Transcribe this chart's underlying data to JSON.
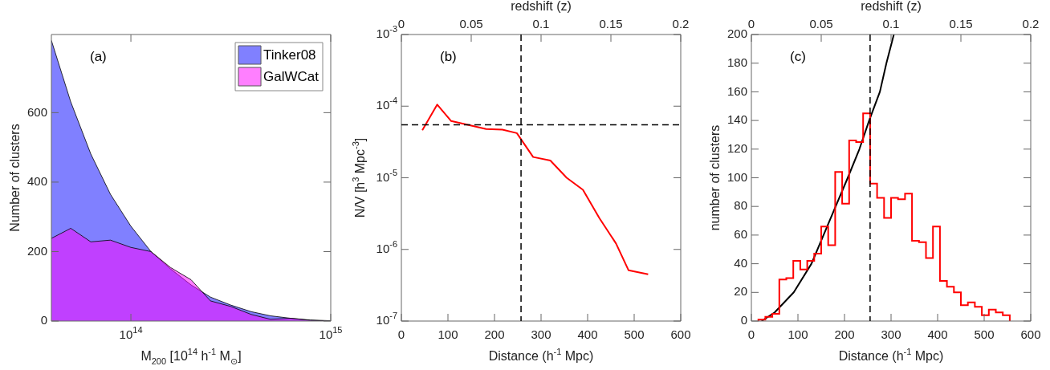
{
  "chart_data": [
    {
      "type": "area",
      "xlabel": "M$_{200}$ [10$^{14}$ h$^{-1}$ M$_{⊙}$]",
      "ylabel": "Number of clusters",
      "log": "x",
      "legend": "top right",
      "annotations": [
        "(a)"
      ],
      "x": [
        40000000000000.0,
        50000000000000.0,
        63000000000000.0,
        79000000000000.0,
        100000000000000.0,
        126000000000000.0,
        158000000000000.0,
        200000000000000.0,
        250000000000000.0,
        316000000000000.0,
        400000000000000.0,
        500000000000000.0,
        630000000000000.0,
        790000000000000.0,
        1000000000000000.0
      ],
      "series": [
        {
          "name": "Tinker08",
          "color": "#8080ff",
          "values": [
            808,
            631,
            481,
            365,
            273,
            200,
            150,
            104,
            69,
            46,
            27,
            15,
            8,
            3,
            1
          ]
        },
        {
          "name": "GalWCat",
          "color": "#ff00ff",
          "values": [
            238,
            267,
            228,
            233,
            212,
            200,
            154,
            119,
            58,
            42,
            19,
            5,
            8,
            2,
            0
          ]
        }
      ],
      "xlim": [
        40000000000000.0,
        1000000000000000.0
      ],
      "xticks": [
        {
          "value": 100000000000000.0,
          "label": "10$^{14}$"
        },
        {
          "value": 1000000000000000.0,
          "label": "10$^{15}$"
        }
      ],
      "ylim": [
        0,
        825
      ],
      "yticks": [
        0,
        200,
        400,
        600
      ]
    },
    {
      "type": "line",
      "xlabel": "Distance (h$^{-1}$ Mpc)",
      "ylabel": "N/V [h$^{3}$ Mpc$^{-3}$]",
      "x2label": "redshift (z)",
      "log": "y",
      "annotations": [
        "(b)"
      ],
      "x": [
        45,
        77,
        107,
        182,
        217,
        248,
        283,
        320,
        355,
        390,
        425,
        461,
        488,
        530
      ],
      "series": [
        {
          "color": "#ff0000",
          "values": [
            4.6e-05,
            0.000105,
            6.2e-05,
            4.8e-05,
            4.7e-05,
            4.2e-05,
            1.95e-05,
            1.74e-05,
            1e-05,
            6.8e-06,
            2.75e-06,
            1.21e-06,
            5.1e-07,
            4.5e-07
          ]
        }
      ],
      "xlim": [
        0,
        600
      ],
      "xticks": [
        0,
        100,
        200,
        300,
        400,
        500,
        600
      ],
      "x2lim": [
        0,
        0.2
      ],
      "x2ticks": [
        0,
        0.05,
        0.1,
        0.15,
        0.2
      ],
      "ylim": [
        1e-07,
        0.001
      ],
      "yticks": [
        {
          "value": 1e-07,
          "label": "10$^{-7}$"
        },
        {
          "value": 1e-06,
          "label": "10$^{-6}$"
        },
        {
          "value": 1e-05,
          "label": "10$^{-5}$"
        },
        {
          "value": 0.0001,
          "label": "10$^{-4}$"
        },
        {
          "value": 0.001,
          "label": "10$^{-3}$"
        }
      ],
      "ref_lines": [
        {
          "axis": "x",
          "value": 257,
          "color": "#000000",
          "line_style": "dashed"
        },
        {
          "axis": "y",
          "value": 5.5e-05,
          "color": "#000000",
          "line_style": "dashed"
        }
      ]
    },
    {
      "type": "histogram",
      "xlabel": "Distance (h$^{-1}$ Mpc)",
      "ylabel": "number of clusters",
      "x2label": "redshift (z)",
      "annotations": [
        "(c)"
      ],
      "color": "#ff0000",
      "bins": [
        15,
        30,
        45,
        60,
        75,
        90,
        105,
        120,
        135,
        150,
        165,
        180,
        195,
        210,
        225,
        240,
        255,
        270,
        285,
        300,
        315,
        330,
        345,
        360,
        375,
        390,
        405,
        420,
        435,
        450,
        465,
        480,
        495,
        510,
        525,
        540,
        555
      ],
      "values": [
        1,
        3,
        5,
        29,
        30,
        42,
        36,
        42,
        47,
        66,
        53,
        104,
        82,
        126,
        125,
        145,
        96,
        86,
        72,
        86,
        85,
        89,
        56,
        55,
        44,
        66,
        28,
        24,
        20,
        11,
        13,
        10,
        4,
        8,
        6,
        4
      ],
      "series": [
        {
          "type": "line",
          "color": "#000000",
          "x": [
            22,
            50,
            91,
            129,
            155,
            181,
            207,
            232,
            253,
            276,
            290,
            306
          ],
          "values": [
            0,
            6,
            20,
            40,
            60,
            80,
            100,
            120,
            140,
            160,
            180,
            200
          ]
        }
      ],
      "xlim": [
        0,
        600
      ],
      "xticks": [
        0,
        100,
        200,
        300,
        400,
        500,
        600
      ],
      "x2lim": [
        0,
        0.2
      ],
      "x2ticks": [
        0,
        0.05,
        0.1,
        0.15,
        0.2
      ],
      "ylim": [
        0,
        200
      ],
      "yticks": [
        0,
        20,
        40,
        60,
        80,
        100,
        120,
        140,
        160,
        180,
        200
      ],
      "ref_lines": [
        {
          "axis": "x",
          "value": 255,
          "color": "#000000",
          "line_style": "dashed"
        }
      ]
    }
  ]
}
